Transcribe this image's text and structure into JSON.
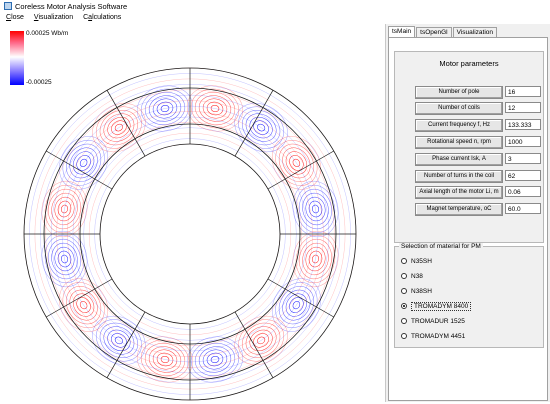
{
  "window": {
    "title": "Coreless Motor Analysis Software"
  },
  "menu": {
    "items": [
      {
        "pre": "",
        "u": "C",
        "post": "lose"
      },
      {
        "pre": "",
        "u": "V",
        "post": "isualization"
      },
      {
        "pre": "C",
        "u": "a",
        "post": "lculations"
      }
    ]
  },
  "legend": {
    "max_label": "0.00025 Wb/m",
    "min_label": "-0.00025",
    "colors": [
      "#ff0000",
      "#ffffff",
      "#0000ff"
    ]
  },
  "field_plot": {
    "poles": 16,
    "coils": 12
  },
  "tabs": [
    {
      "label": "tsMain",
      "active": true
    },
    {
      "label": "tsOpenGl",
      "active": false
    },
    {
      "label": "Visualization",
      "active": false
    }
  ],
  "params": {
    "title": "Motor parameters",
    "rows": [
      {
        "label": "Number of pole",
        "value": "16"
      },
      {
        "label": "Number of coils",
        "value": "12"
      },
      {
        "label": "Current frequency f, Hz",
        "value": "133.333"
      },
      {
        "label": "Rotational speed n, rpm",
        "value": "1000"
      },
      {
        "label": "Phase current Isk,  A",
        "value": "3"
      },
      {
        "label": "Number of turns in the coil",
        "value": "62"
      },
      {
        "label": "Axial length of the motor Li, m",
        "value": "0.06"
      },
      {
        "label": "Magnet temperature, oC",
        "value": "60.0"
      }
    ]
  },
  "material": {
    "title": "Selection of material for PM",
    "options": [
      {
        "label": "N35SH",
        "selected": false
      },
      {
        "label": "N38",
        "selected": false
      },
      {
        "label": "N38SH",
        "selected": false
      },
      {
        "label": "TROMADYM 8400",
        "selected": true
      },
      {
        "label": "TROMADUR 1525",
        "selected": false
      },
      {
        "label": "TROMADYM 4451",
        "selected": false
      }
    ]
  }
}
